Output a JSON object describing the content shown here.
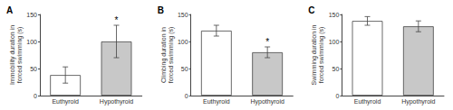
{
  "chart_data": [
    {
      "type": "bar",
      "title": "A",
      "ylabel": "Immobility duration in\nforced swimming (s)",
      "categories": [
        "Euthyroid",
        "Hypothyroid"
      ],
      "values": [
        38,
        100
      ],
      "errors": [
        15,
        30
      ],
      "colors": [
        "#ffffff",
        "#c8c8c8"
      ],
      "ylim": [
        0,
        150
      ],
      "yticks": [
        0,
        50,
        100,
        150
      ],
      "grid": false,
      "annotations": [
        {
          "text": "*",
          "x": "Hypothyroid"
        }
      ]
    },
    {
      "type": "bar",
      "title": "B",
      "ylabel": "Climbing duration in\nforced swimming (s)",
      "categories": [
        "Euthyroid",
        "Hypothyroid"
      ],
      "values": [
        120,
        80
      ],
      "errors": [
        10,
        10
      ],
      "colors": [
        "#ffffff",
        "#c8c8c8"
      ],
      "ylim": [
        0,
        150
      ],
      "yticks": [
        0,
        50,
        100,
        150
      ],
      "grid": false,
      "annotations": [
        {
          "text": "*",
          "x": "Hypothyroid"
        }
      ]
    },
    {
      "type": "bar",
      "title": "C",
      "ylabel": "Swimming duration in\nforced swimming (s)",
      "categories": [
        "Euthyroid",
        "Hypothyroid"
      ],
      "values": [
        138,
        128
      ],
      "errors": [
        8,
        10
      ],
      "colors": [
        "#ffffff",
        "#c8c8c8"
      ],
      "ylim": [
        0,
        150
      ],
      "yticks": [
        0,
        50,
        100,
        150
      ],
      "grid": false
    }
  ]
}
